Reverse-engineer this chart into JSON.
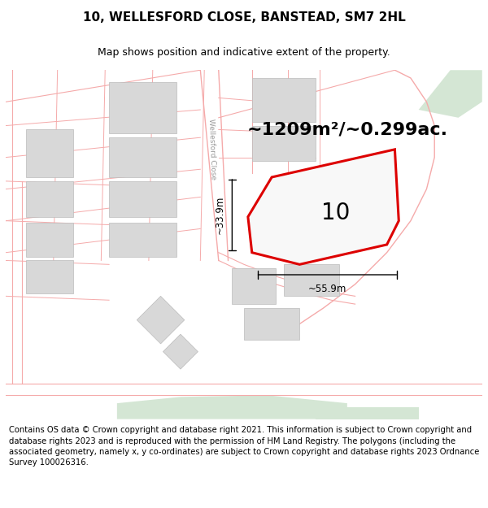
{
  "title": "10, WELLESFORD CLOSE, BANSTEAD, SM7 2HL",
  "subtitle": "Map shows position and indicative extent of the property.",
  "area_text": "~1209m²/~0.299ac.",
  "label_number": "10",
  "dim_height": "~33.9m",
  "dim_width": "~55.9m",
  "footer": "Contains OS data © Crown copyright and database right 2021. This information is subject to Crown copyright and database rights 2023 and is reproduced with the permission of HM Land Registry. The polygons (including the associated geometry, namely x, y co-ordinates) are subject to Crown copyright and database rights 2023 Ordnance Survey 100026316.",
  "bg_color": "#ffffff",
  "map_bg": "#f8f8f6",
  "plot_line_color": "#dd0000",
  "plot_fill_color": "#f8f8f8",
  "building_fill": "#d8d8d8",
  "building_edge": "#bbbbbb",
  "road_line_color": "#f5aaaa",
  "green_color": "#d4e6d4",
  "title_fontsize": 11,
  "subtitle_fontsize": 9,
  "footer_fontsize": 7.2,
  "area_fontsize": 16,
  "label_fontsize": 20,
  "dim_fontsize": 8.5,
  "street_label_fontsize": 6.5,
  "street_label_color": "#999999"
}
